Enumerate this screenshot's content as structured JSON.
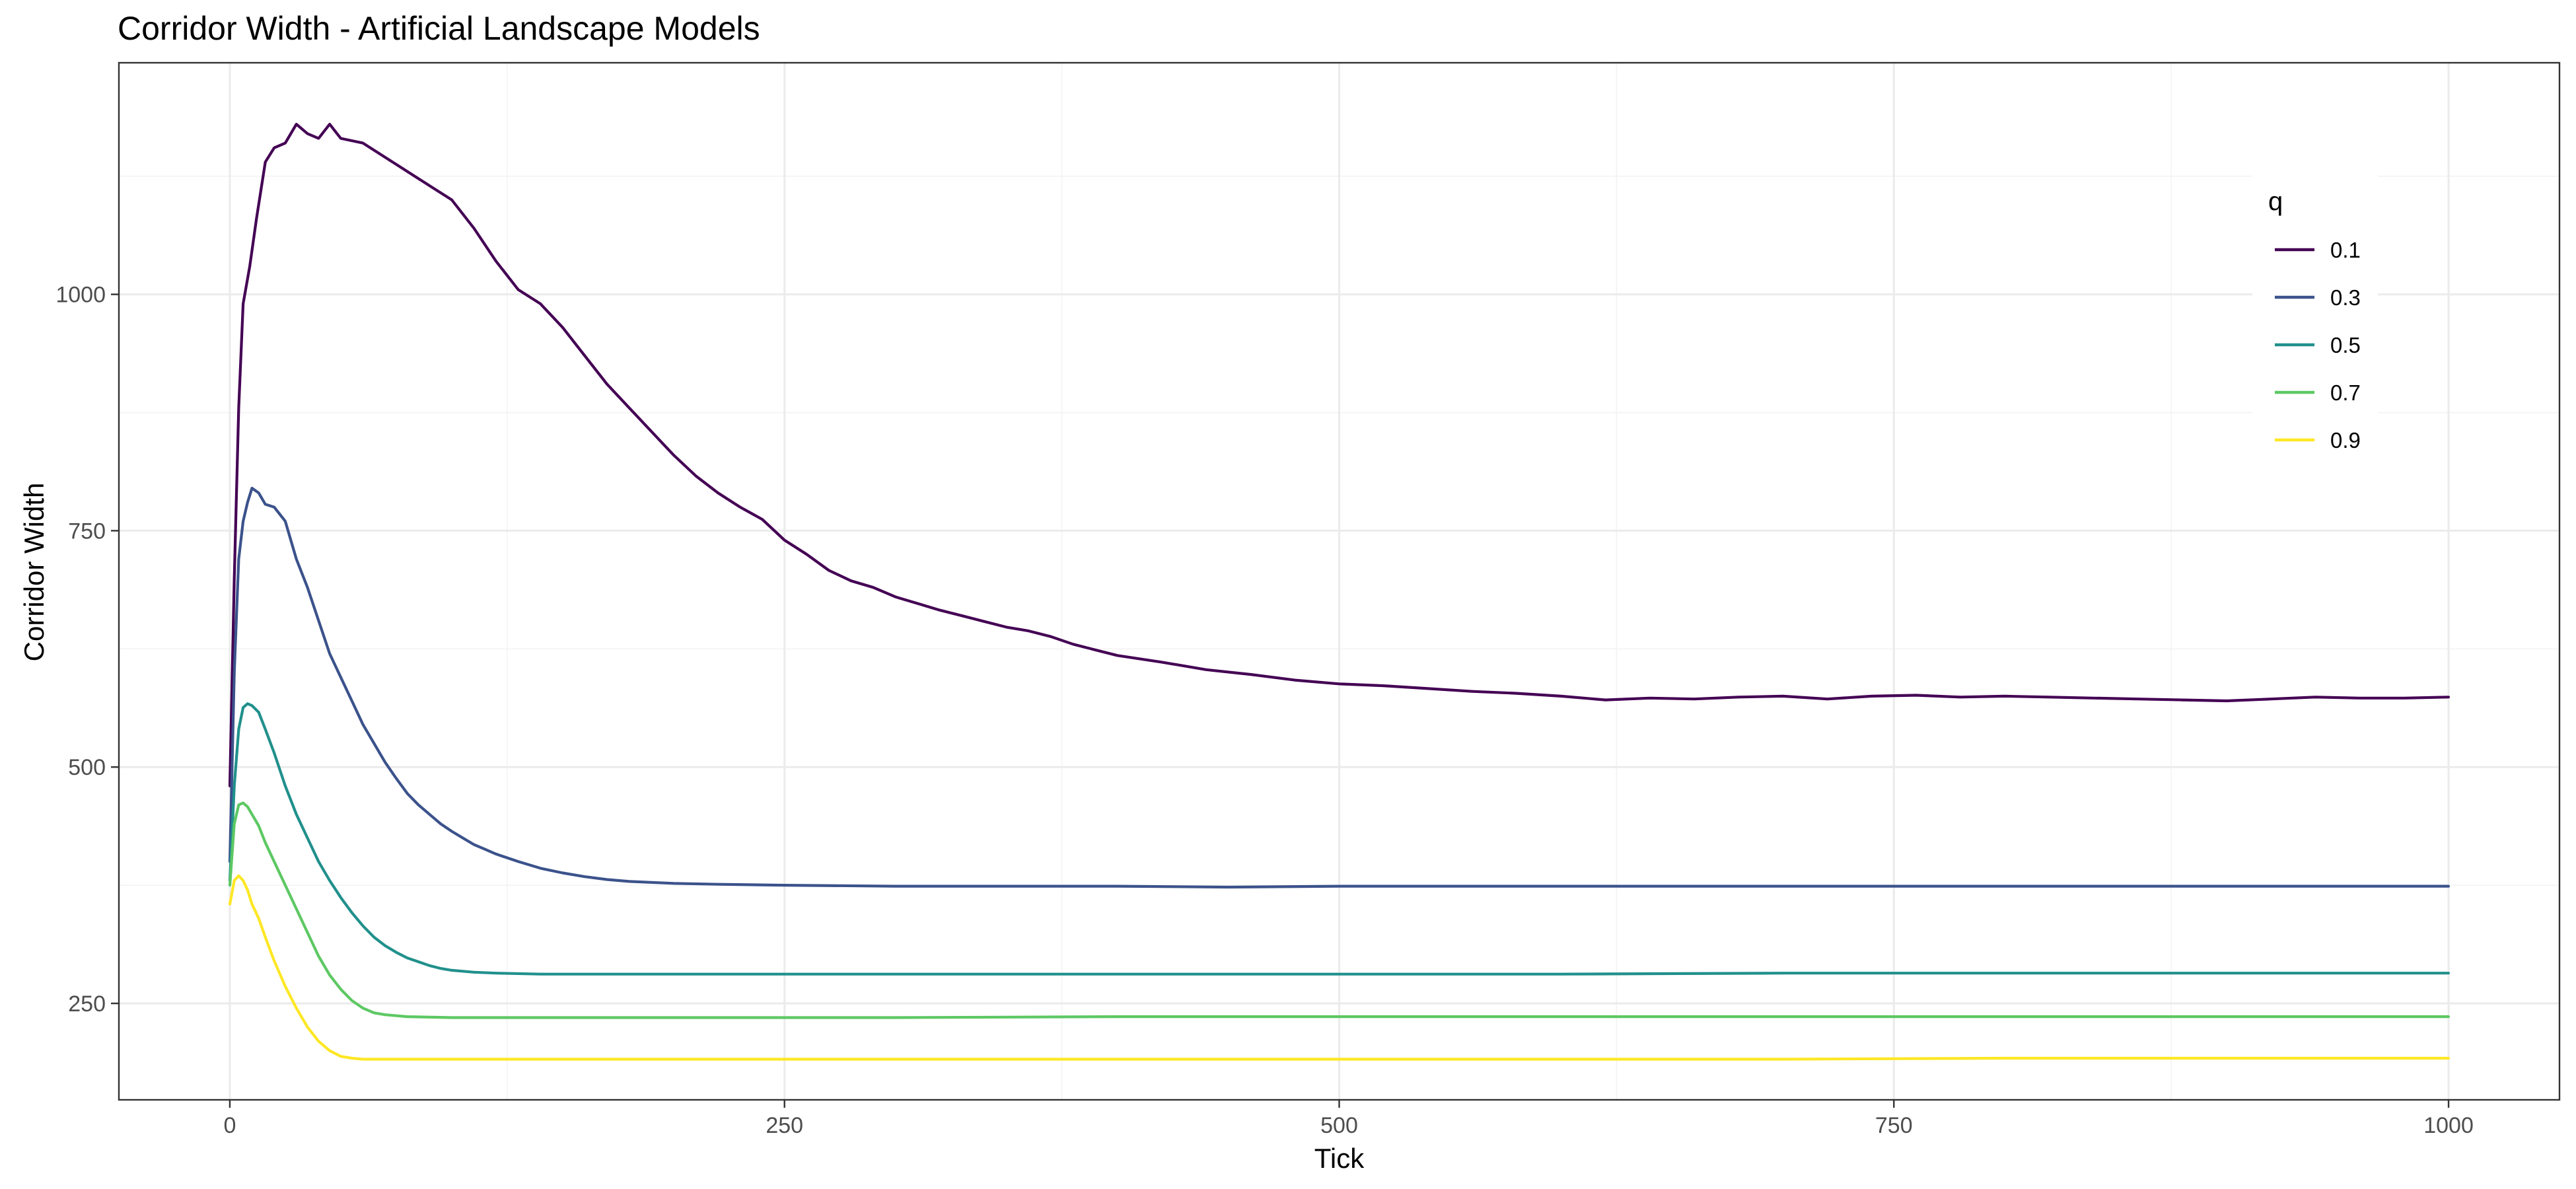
{
  "chart_data": {
    "type": "line",
    "title": "Corridor Width - Artificial Landscape Models",
    "xlabel": "Tick",
    "ylabel": "Corridor Width",
    "xlim": [
      -50,
      1050
    ],
    "ylim": [
      148,
      1245
    ],
    "x_ticks": [
      0,
      250,
      500,
      750,
      1000
    ],
    "y_ticks": [
      250,
      500,
      750,
      1000
    ],
    "grid": true,
    "legend": {
      "title": "q",
      "placement": "right"
    },
    "series": [
      {
        "name": "0.1",
        "color": "#440154",
        "points": [
          [
            0,
            480
          ],
          [
            2,
            700
          ],
          [
            4,
            880
          ],
          [
            6,
            990
          ],
          [
            9,
            1030
          ],
          [
            12,
            1080
          ],
          [
            16,
            1140
          ],
          [
            20,
            1155
          ],
          [
            25,
            1160
          ],
          [
            30,
            1180
          ],
          [
            35,
            1170
          ],
          [
            40,
            1165
          ],
          [
            45,
            1180
          ],
          [
            50,
            1165
          ],
          [
            60,
            1160
          ],
          [
            70,
            1145
          ],
          [
            80,
            1130
          ],
          [
            90,
            1115
          ],
          [
            100,
            1100
          ],
          [
            110,
            1070
          ],
          [
            120,
            1035
          ],
          [
            130,
            1005
          ],
          [
            140,
            990
          ],
          [
            150,
            965
          ],
          [
            160,
            935
          ],
          [
            170,
            905
          ],
          [
            180,
            880
          ],
          [
            190,
            855
          ],
          [
            200,
            830
          ],
          [
            210,
            808
          ],
          [
            220,
            790
          ],
          [
            230,
            775
          ],
          [
            240,
            762
          ],
          [
            250,
            740
          ],
          [
            260,
            725
          ],
          [
            270,
            708
          ],
          [
            280,
            697
          ],
          [
            290,
            690
          ],
          [
            300,
            680
          ],
          [
            310,
            673
          ],
          [
            320,
            666
          ],
          [
            330,
            660
          ],
          [
            340,
            654
          ],
          [
            350,
            648
          ],
          [
            360,
            644
          ],
          [
            370,
            638
          ],
          [
            380,
            630
          ],
          [
            390,
            624
          ],
          [
            400,
            618
          ],
          [
            420,
            611
          ],
          [
            440,
            603
          ],
          [
            460,
            598
          ],
          [
            480,
            592
          ],
          [
            500,
            588
          ],
          [
            520,
            586
          ],
          [
            540,
            583
          ],
          [
            560,
            580
          ],
          [
            580,
            578
          ],
          [
            600,
            575
          ],
          [
            620,
            571
          ],
          [
            640,
            573
          ],
          [
            660,
            572
          ],
          [
            680,
            574
          ],
          [
            700,
            575
          ],
          [
            720,
            572
          ],
          [
            740,
            575
          ],
          [
            760,
            576
          ],
          [
            780,
            574
          ],
          [
            800,
            575
          ],
          [
            820,
            574
          ],
          [
            840,
            573
          ],
          [
            860,
            572
          ],
          [
            880,
            571
          ],
          [
            900,
            570
          ],
          [
            920,
            572
          ],
          [
            940,
            574
          ],
          [
            960,
            573
          ],
          [
            980,
            573
          ],
          [
            1000,
            574
          ]
        ]
      },
      {
        "name": "0.3",
        "color": "#3b528b",
        "points": [
          [
            0,
            400
          ],
          [
            2,
            600
          ],
          [
            4,
            720
          ],
          [
            6,
            760
          ],
          [
            8,
            780
          ],
          [
            10,
            795
          ],
          [
            13,
            790
          ],
          [
            16,
            778
          ],
          [
            20,
            775
          ],
          [
            25,
            760
          ],
          [
            30,
            720
          ],
          [
            35,
            690
          ],
          [
            40,
            655
          ],
          [
            45,
            620
          ],
          [
            50,
            595
          ],
          [
            55,
            570
          ],
          [
            60,
            545
          ],
          [
            65,
            525
          ],
          [
            70,
            505
          ],
          [
            75,
            488
          ],
          [
            80,
            472
          ],
          [
            85,
            460
          ],
          [
            90,
            450
          ],
          [
            95,
            440
          ],
          [
            100,
            432
          ],
          [
            105,
            425
          ],
          [
            110,
            418
          ],
          [
            115,
            413
          ],
          [
            120,
            408
          ],
          [
            130,
            400
          ],
          [
            140,
            393
          ],
          [
            150,
            388
          ],
          [
            160,
            384
          ],
          [
            170,
            381
          ],
          [
            180,
            379
          ],
          [
            200,
            377
          ],
          [
            220,
            376
          ],
          [
            250,
            375
          ],
          [
            300,
            374
          ],
          [
            350,
            374
          ],
          [
            400,
            374
          ],
          [
            450,
            373
          ],
          [
            500,
            374
          ],
          [
            550,
            374
          ],
          [
            600,
            374
          ],
          [
            650,
            374
          ],
          [
            700,
            374
          ],
          [
            750,
            374
          ],
          [
            800,
            374
          ],
          [
            850,
            374
          ],
          [
            900,
            374
          ],
          [
            950,
            374
          ],
          [
            1000,
            374
          ]
        ]
      },
      {
        "name": "0.5",
        "color": "#21908c",
        "points": [
          [
            0,
            380
          ],
          [
            2,
            480
          ],
          [
            4,
            540
          ],
          [
            6,
            563
          ],
          [
            8,
            567
          ],
          [
            10,
            565
          ],
          [
            13,
            558
          ],
          [
            16,
            540
          ],
          [
            20,
            515
          ],
          [
            25,
            480
          ],
          [
            30,
            450
          ],
          [
            35,
            425
          ],
          [
            40,
            400
          ],
          [
            45,
            380
          ],
          [
            50,
            362
          ],
          [
            55,
            346
          ],
          [
            60,
            332
          ],
          [
            65,
            320
          ],
          [
            70,
            311
          ],
          [
            75,
            304
          ],
          [
            80,
            298
          ],
          [
            85,
            294
          ],
          [
            90,
            290
          ],
          [
            95,
            287
          ],
          [
            100,
            285
          ],
          [
            110,
            283
          ],
          [
            120,
            282
          ],
          [
            140,
            281
          ],
          [
            160,
            281
          ],
          [
            200,
            281
          ],
          [
            300,
            281
          ],
          [
            400,
            281
          ],
          [
            500,
            281
          ],
          [
            600,
            281
          ],
          [
            700,
            282
          ],
          [
            800,
            282
          ],
          [
            900,
            282
          ],
          [
            1000,
            282
          ]
        ]
      },
      {
        "name": "0.7",
        "color": "#5dc863",
        "points": [
          [
            0,
            375
          ],
          [
            2,
            440
          ],
          [
            4,
            460
          ],
          [
            6,
            462
          ],
          [
            8,
            458
          ],
          [
            10,
            450
          ],
          [
            13,
            438
          ],
          [
            16,
            420
          ],
          [
            20,
            400
          ],
          [
            25,
            375
          ],
          [
            30,
            350
          ],
          [
            35,
            325
          ],
          [
            40,
            300
          ],
          [
            45,
            280
          ],
          [
            50,
            265
          ],
          [
            55,
            253
          ],
          [
            60,
            245
          ],
          [
            65,
            240
          ],
          [
            70,
            238
          ],
          [
            80,
            236
          ],
          [
            100,
            235
          ],
          [
            150,
            235
          ],
          [
            200,
            235
          ],
          [
            300,
            235
          ],
          [
            400,
            236
          ],
          [
            500,
            236
          ],
          [
            600,
            236
          ],
          [
            700,
            236
          ],
          [
            800,
            236
          ],
          [
            900,
            236
          ],
          [
            1000,
            236
          ]
        ]
      },
      {
        "name": "0.9",
        "color": "#fde725",
        "points": [
          [
            0,
            355
          ],
          [
            2,
            380
          ],
          [
            4,
            385
          ],
          [
            6,
            380
          ],
          [
            8,
            370
          ],
          [
            10,
            355
          ],
          [
            13,
            340
          ],
          [
            16,
            320
          ],
          [
            20,
            295
          ],
          [
            25,
            268
          ],
          [
            30,
            245
          ],
          [
            35,
            225
          ],
          [
            40,
            210
          ],
          [
            45,
            200
          ],
          [
            50,
            194
          ],
          [
            55,
            192
          ],
          [
            60,
            191
          ],
          [
            80,
            191
          ],
          [
            100,
            191
          ],
          [
            150,
            191
          ],
          [
            200,
            191
          ],
          [
            300,
            191
          ],
          [
            400,
            191
          ],
          [
            500,
            191
          ],
          [
            600,
            191
          ],
          [
            700,
            191
          ],
          [
            800,
            192
          ],
          [
            900,
            192
          ],
          [
            1000,
            192
          ]
        ]
      }
    ]
  }
}
